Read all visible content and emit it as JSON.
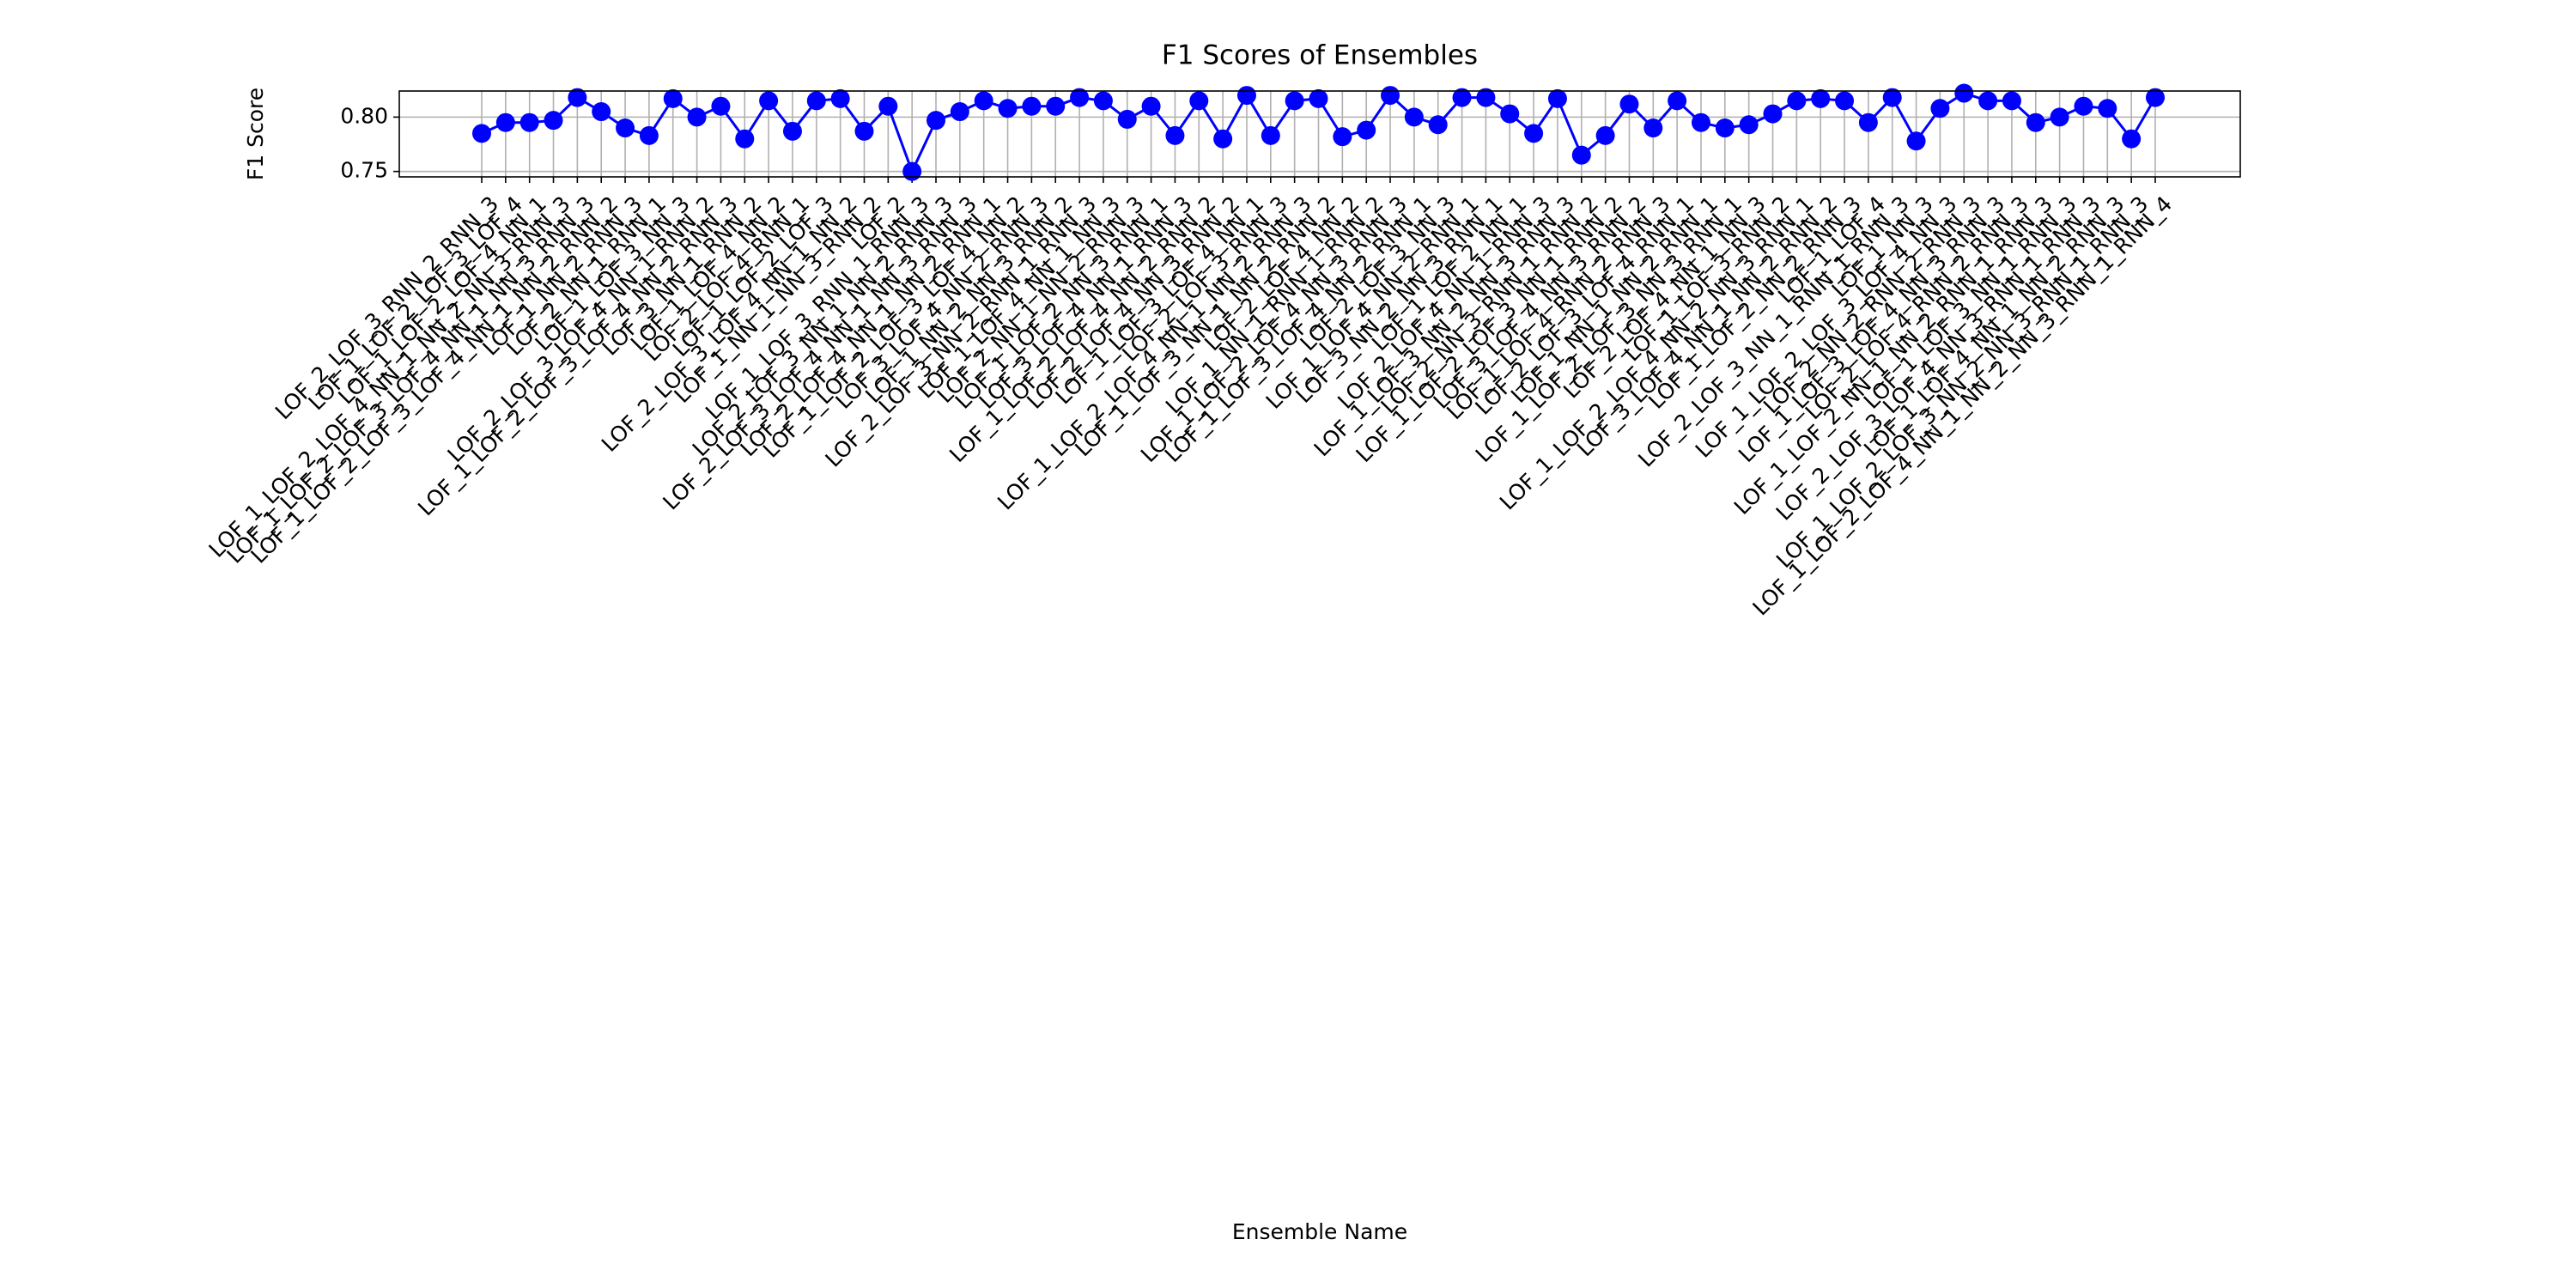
{
  "chart_data": {
    "type": "line",
    "title": "F1 Scores of Ensembles",
    "xlabel": "Ensemble Name",
    "ylabel": "F1 Score",
    "categories": [
      "LOF_2_LOF_3_RNN_2_RNN_3",
      "LOF_1_LOF_2_LOF_3_LOF_4",
      "LOF_1_LOF_2_LOF_4_NN_1",
      "LOF_1_LOF_2_LOF_4_NN_1_NN_2_NN_3_RNN_3",
      "LOF_1_LOF_2_LOF_3_LOF_4_NN_1_NN_3_RNN_3",
      "LOF_1_LOF_2_LOF_3_LOF_4_NN_1_NN_2_RNN_2",
      "LOF_1_NN_2_RNN_3",
      "LOF_2_NN_1_RNN_1",
      "LOF_1_LOF_3_NN_3",
      "LOF_2_LOF_3_LOF_4_NN_1_RNN_2",
      "LOF_1_LOF_2_LOF_3_LOF_4_NN_2_RNN_3",
      "LOF_3_NN_1_RNN_2",
      "LOF_1_LOF_4_NN_2",
      "LOF_2_LOF_4_RNN_1",
      "LOF_1_LOF_2_LOF_3",
      "LOF_2_LOF_3_LOF_4_NN_1_NN_2",
      "LOF_1_NN_1_NN_3_RNN_2",
      "LOF_2",
      "LOF_1_LOF_3_RNN_1_RNN_3",
      "LOF_2_LOF_3_NN_1_NN_2_RNN_3",
      "LOF_2_LOF_3_LOF_4_NN_1_NN_3_RNN_3",
      "LOF_2_LOF_4_NN_1_NN_2_RNN_1",
      "LOF_1_LOF_2_LOF_3_LOF_4_NN_2",
      "LOF_3_LOF_4_NN_2_RNN_3",
      "LOF_1_NN_2_NN_3_RNN_2",
      "LOF_2_LOF_3_NN_2_RNN_1_RNN_3",
      "LOF_1_LOF_4_NN_1_NN_3",
      "LOF_2_NN_1_NN_2_RNN_3",
      "LOF_1_LOF_2_NN_3_RNN_1",
      "LOF_3_LOF_4_NN_1_RNN_3",
      "LOF_1_LOF_2_LOF_4_NN_2_RNN_2",
      "LOF_2_LOF_4_NN_3_RNN_2",
      "LOF_1_LOF_3_LOF_4_NN_1",
      "LOF_2_LOF_3_RNN_3",
      "LOF_1_LOF_2_LOF_4_NN_1_NN_2_RNN_3",
      "LOF_1_LOF_3_NN_1_NN_2_RNN_2",
      "LOF_2_LOF_4_NN_2",
      "LOF_1_NN_1_RNN_1_RNN_2",
      "LOF_1_LOF_2_LOF_4_NN_3_RNN_3",
      "LOF_1_LOF_3_LOF_4_NN_2_RNN_1",
      "LOF_2_LOF_3_NN_3",
      "LOF_1_LOF_4_NN_2_RNN_1",
      "LOF_3_NN_2_NN_3_RNN_1",
      "LOF_1_LOF_2_NN_1",
      "LOF_2_LOF_4_NN_1_RNN_3",
      "LOF_1_LOF_3_NN_2_NN_3_RNN_3",
      "LOF_2_NN_3_RNN_1_RNN_2",
      "LOF_1_LOF_2_LOF_3_NN_1_RNN_2",
      "LOF_3_LOF_4_NN_3_RNN_2",
      "LOF_1_LOF_4_RNN_2_RNN_3",
      "LOF_2_LOF_3_LOF_4_RNN_1",
      "LOF_1_NN_1_NN_2_RNN_1",
      "LOF_1_LOF_2_LOF_3_NN_3_RNN_1",
      "LOF_2_LOF_4_NN_1_NN_3",
      "LOF_1_LOF_3_RNN_2",
      "LOF_1_LOF_2_LOF_4_NN_2_NN_3_RNN_1",
      "LOF_3_LOF_4_NN_1_NN_2_RNN_2",
      "LOF_1_LOF_2_NN_2_RNN_3",
      "LOF_1_LOF_4",
      "LOF_2_LOF_3_NN_1_RNN_1_RNN_3",
      "LOF_1_NN_3",
      "LOF_1_LOF_2_LOF_3_LOF_4_NN_3",
      "LOF_2_NN_2_RNN_2_RNN_3",
      "LOF_1_LOF_3_LOF_4_NN_3_RNN_3",
      "LOF_2_LOF_4_RNN_2_RNN_3",
      "LOF_1_LOF_2_NN_1_NN_2_RNN_1_RNN_3",
      "LOF_1_LOF_3_NN_1_RNN_3",
      "LOF_2_LOF_3_LOF_4_NN_3_RNN_1_RNN_3",
      "LOF_1_LOF_4_NN_1_NN_2_RNN_3",
      "LOF_1_LOF_2_LOF_3_NN_2_NN_3_RNN_1_RNN_3",
      "LOF_1_LOF_2_LOF_4_NN_1_NN_2_NN_3_RNN_1_RNN_4"
    ],
    "series": [
      {
        "name": "F1 Score",
        "color": "#0000ff",
        "values": [
          0.785,
          0.795,
          0.795,
          0.797,
          0.818,
          0.805,
          0.79,
          0.783,
          0.817,
          0.8,
          0.81,
          0.78,
          0.815,
          0.787,
          0.815,
          0.817,
          0.787,
          0.81,
          0.75,
          0.797,
          0.805,
          0.815,
          0.808,
          0.81,
          0.81,
          0.818,
          0.815,
          0.798,
          0.81,
          0.783,
          0.815,
          0.78,
          0.82,
          0.783,
          0.815,
          0.817,
          0.782,
          0.788,
          0.82,
          0.8,
          0.793,
          0.818,
          0.818,
          0.803,
          0.785,
          0.817,
          0.765,
          0.783,
          0.812,
          0.79,
          0.815,
          0.795,
          0.79,
          0.793,
          0.803,
          0.815,
          0.817,
          0.815,
          0.795,
          0.818,
          0.778,
          0.808,
          0.822,
          0.815,
          0.815,
          0.795,
          0.8,
          0.81,
          0.808,
          0.78,
          0.818
        ]
      }
    ],
    "ylim": [
      0.745,
      0.824
    ],
    "yticks": [
      {
        "value": 0.75,
        "label": "0.75"
      },
      {
        "value": 0.8,
        "label": "0.80"
      }
    ],
    "grid": true
  }
}
